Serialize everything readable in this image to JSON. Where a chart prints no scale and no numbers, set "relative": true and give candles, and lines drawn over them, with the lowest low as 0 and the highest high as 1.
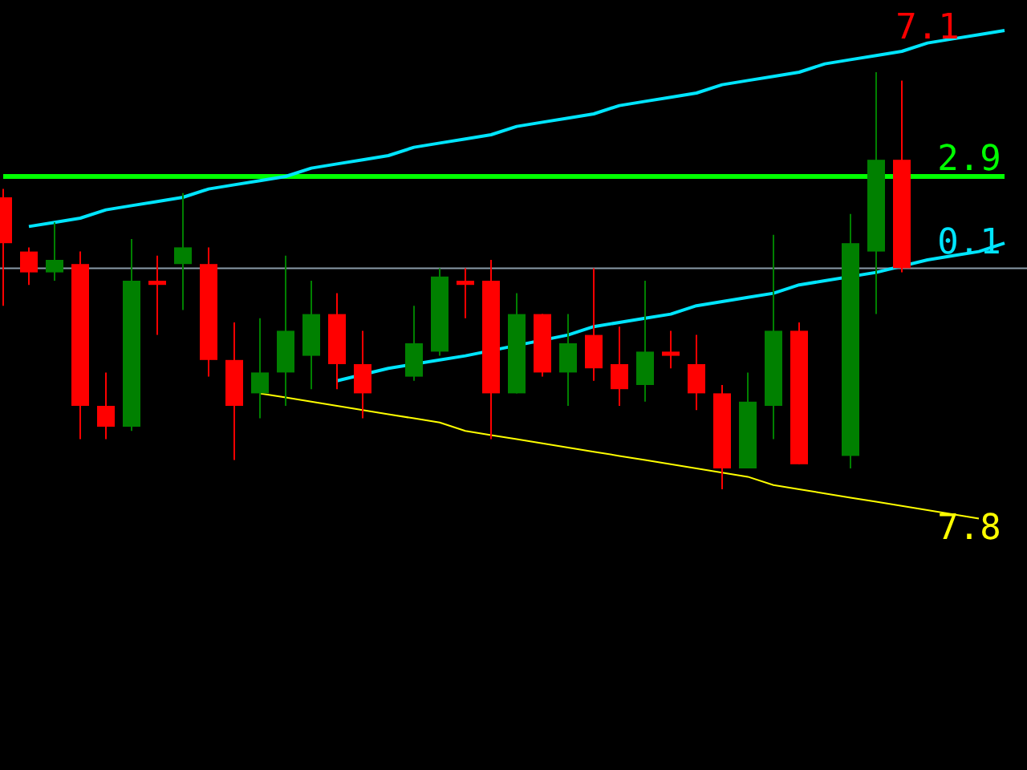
{
  "chart_data": {
    "type": "candlestick",
    "relative": true,
    "categories": [
      null,
      null,
      null,
      null,
      null,
      null,
      null,
      null,
      null,
      null,
      null,
      null,
      null,
      null,
      null,
      null,
      null,
      null,
      null,
      null,
      null,
      null,
      null,
      null,
      null,
      null,
      null,
      null,
      null,
      null,
      null,
      null,
      null,
      null,
      null,
      null,
      null,
      null,
      null,
      null
    ],
    "ohlc": [
      [
        0.7,
        0.72,
        0.44,
        0.59
      ],
      [
        0.57,
        0.58,
        0.49,
        0.52
      ],
      [
        0.52,
        0.64,
        0.5,
        0.55
      ],
      [
        0.54,
        0.57,
        0.12,
        0.2
      ],
      [
        0.2,
        0.28,
        0.12,
        0.15
      ],
      [
        0.15,
        0.6,
        0.14,
        0.5
      ],
      [
        0.5,
        0.56,
        0.37,
        0.49
      ],
      [
        0.54,
        0.71,
        0.43,
        0.58
      ],
      [
        0.54,
        0.58,
        0.27,
        0.31
      ],
      [
        0.31,
        0.4,
        0.07,
        0.2
      ],
      [
        0.23,
        0.41,
        0.17,
        0.28
      ],
      [
        0.28,
        0.56,
        0.2,
        0.38
      ],
      [
        0.32,
        0.5,
        0.24,
        0.42
      ],
      [
        0.42,
        0.47,
        0.24,
        0.3
      ],
      [
        0.3,
        0.38,
        0.17,
        0.23
      ],
      null,
      [
        0.27,
        0.44,
        0.26,
        0.35
      ],
      [
        0.33,
        0.53,
        0.32,
        0.51
      ],
      [
        0.5,
        0.53,
        0.41,
        0.49
      ],
      [
        0.5,
        0.55,
        0.12,
        0.23
      ],
      [
        0.23,
        0.47,
        0.23,
        0.42
      ],
      [
        0.42,
        0.42,
        0.27,
        0.28
      ],
      [
        0.28,
        0.42,
        0.2,
        0.35
      ],
      [
        0.37,
        0.53,
        0.26,
        0.29
      ],
      [
        0.3,
        0.39,
        0.2,
        0.24
      ],
      [
        0.25,
        0.5,
        0.21,
        0.33
      ],
      [
        0.33,
        0.38,
        0.29,
        0.32
      ],
      [
        0.3,
        0.37,
        0.19,
        0.23
      ],
      [
        0.23,
        0.25,
        0,
        0.05
      ],
      [
        0.05,
        0.28,
        0.05,
        0.21
      ],
      [
        0.2,
        0.61,
        0.12,
        0.38
      ],
      [
        0.38,
        0.4,
        0.06,
        0.06
      ],
      null,
      [
        0.08,
        0.66,
        0.05,
        0.59
      ],
      [
        0.57,
        1,
        0.42,
        0.79
      ],
      [
        0.79,
        0.98,
        0.52,
        0.53
      ],
      null,
      null,
      null,
      null
    ],
    "colors": [
      "#ff0000",
      "#ff0000",
      "#008000",
      "#ff0000",
      "#ff0000",
      "#008000",
      "#ff0000",
      "#008000",
      "#ff0000",
      "#ff0000",
      "#008000",
      "#008000",
      "#008000",
      "#ff0000",
      "#ff0000",
      null,
      "#008000",
      "#008000",
      "#ff0000",
      "#ff0000",
      "#008000",
      "#ff0000",
      "#008000",
      "#ff0000",
      "#ff0000",
      "#008000",
      "#ff0000",
      "#ff0000",
      "#ff0000",
      "#008000",
      "#008000",
      "#ff0000",
      null,
      "#008000",
      "#008000",
      "#ff0000",
      null,
      null,
      null,
      null
    ],
    "series": [
      {
        "type": "line",
        "name": "2.9",
        "color": "#00ff00",
        "values": [
          0.75,
          0.75,
          0.75,
          0.75,
          0.75,
          0.75,
          0.75,
          0.75,
          0.75,
          0.75,
          0.75,
          0.75,
          0.75,
          0.75,
          0.75,
          0.75,
          0.75,
          0.75,
          0.75,
          0.75,
          0.75,
          0.75,
          0.75,
          0.75,
          0.75,
          0.75,
          0.75,
          0.75,
          0.75,
          0.75,
          0.75,
          0.75,
          0.75,
          0.75,
          null,
          null,
          0.75,
          0.75,
          0.75,
          0.75
        ]
      },
      {
        "type": "line",
        "color": "#00e5ff",
        "values": [
          null,
          0.63,
          0.64,
          0.65,
          0.67,
          0.68,
          0.69,
          0.7,
          0.72,
          0.73,
          0.74,
          0.75,
          0.77,
          0.78,
          0.79,
          0.8,
          0.82,
          0.83,
          0.84,
          0.85,
          0.87,
          0.88,
          0.89,
          0.9,
          0.92,
          0.93,
          0.94,
          0.95,
          0.97,
          0.98,
          0.99,
          1.0,
          1.02,
          1.03,
          1.04,
          1.05,
          1.07,
          1.08,
          1.09,
          1.1
        ]
      },
      {
        "type": "line",
        "name": "0.1",
        "color": "#00e5ff",
        "values": [
          null,
          null,
          null,
          null,
          null,
          null,
          null,
          null,
          null,
          null,
          null,
          null,
          null,
          0.26,
          null,
          0.29,
          null,
          0.31,
          0.32,
          null,
          null,
          null,
          0.37,
          0.39,
          0.4,
          0.41,
          0.42,
          0.44,
          0.45,
          0.46,
          0.47,
          0.49,
          0.5,
          null,
          0.52,
          null,
          0.55,
          0.56,
          0.57,
          0.59
        ]
      },
      {
        "type": "line",
        "name": "7.8",
        "color": "#ffff00",
        "values": [
          null,
          null,
          null,
          null,
          null,
          null,
          null,
          null,
          null,
          null,
          0.23,
          0.22,
          0.21,
          0.2,
          0.19,
          0.18,
          0.17,
          0.16,
          0.14,
          0.13,
          0.12,
          0.11,
          0.1,
          0.09,
          0.08,
          0.07,
          0.06,
          0.05,
          0.04,
          0.03,
          0.01,
          0.0,
          -0.01,
          -0.02,
          -0.03,
          -0.04,
          -0.05,
          -0.06,
          -0.07,
          null
        ]
      }
    ],
    "ref_lines": [
      {
        "axis": "y",
        "value": 0.53,
        "color": "#8a9aa8"
      }
    ],
    "annotations": [
      "7.1"
    ]
  }
}
